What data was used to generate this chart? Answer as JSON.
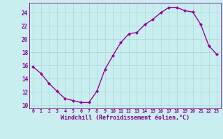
{
  "x": [
    0,
    1,
    2,
    3,
    4,
    5,
    6,
    7,
    8,
    9,
    10,
    11,
    12,
    13,
    14,
    15,
    16,
    17,
    18,
    19,
    20,
    21,
    22,
    23
  ],
  "y": [
    15.8,
    14.8,
    13.3,
    12.1,
    11.0,
    10.7,
    10.4,
    10.4,
    12.1,
    15.4,
    17.5,
    19.5,
    20.8,
    21.0,
    22.2,
    23.0,
    24.0,
    24.8,
    24.8,
    24.3,
    24.1,
    22.2,
    19.0,
    17.7
  ],
  "line_color": "#990099",
  "marker": "D",
  "marker_size": 2.0,
  "bg_color": "#c8eef0",
  "grid_color": "#aad4d8",
  "xlabel": "Windchill (Refroidissement éolien,°C)",
  "ylim": [
    9.5,
    25.5
  ],
  "xlim": [
    -0.5,
    23.5
  ],
  "yticks": [
    10,
    12,
    14,
    16,
    18,
    20,
    22,
    24
  ],
  "xticks": [
    0,
    1,
    2,
    3,
    4,
    5,
    6,
    7,
    8,
    9,
    10,
    11,
    12,
    13,
    14,
    15,
    16,
    17,
    18,
    19,
    20,
    21,
    22,
    23
  ],
  "tick_color": "#880088",
  "font_size_x": 4.8,
  "font_size_y": 5.5,
  "font_size_xlabel": 6.0,
  "linewidth": 1.0
}
